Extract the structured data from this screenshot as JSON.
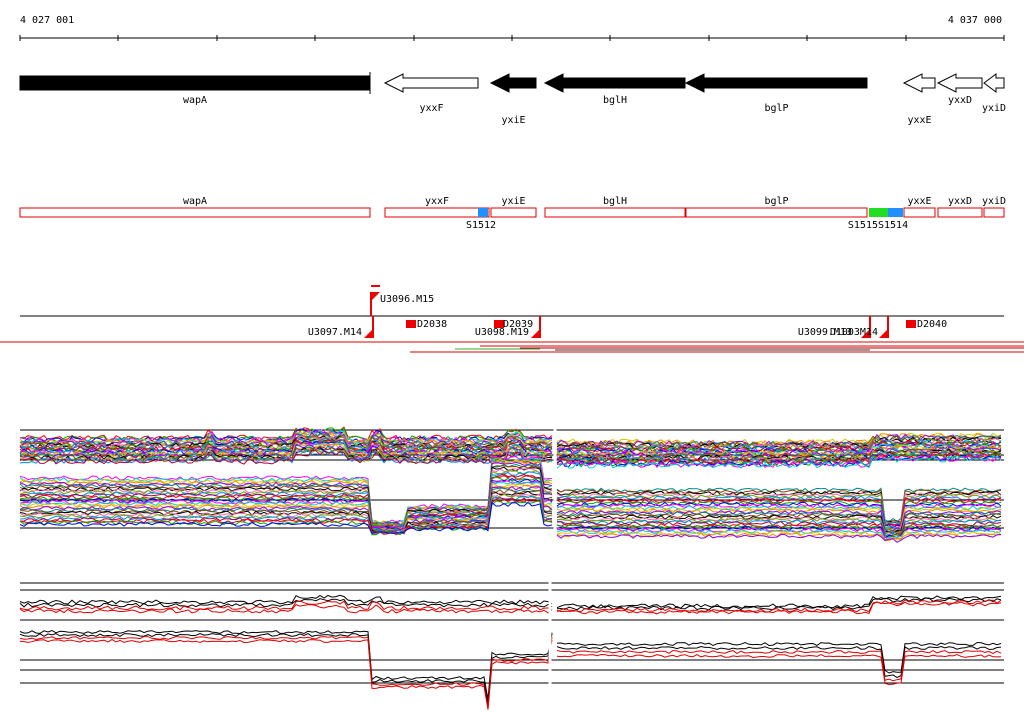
{
  "coordinates": {
    "start": "4 027 001",
    "end": "4 037 000"
  },
  "genes": [
    {
      "name": "wapA",
      "strand": "+",
      "style": "filled"
    },
    {
      "name": "yxxF",
      "strand": "-",
      "style": "open"
    },
    {
      "name": "yxiE",
      "strand": "-",
      "style": "filled"
    },
    {
      "name": "bglH",
      "strand": "-",
      "style": "filled"
    },
    {
      "name": "bglP",
      "strand": "-",
      "style": "filled"
    },
    {
      "name": "yxxE",
      "strand": "-",
      "style": "open"
    },
    {
      "name": "yxxD",
      "strand": "-",
      "style": "open"
    },
    {
      "name": "yxiD",
      "strand": "-",
      "style": "open"
    }
  ],
  "transcription_units": [
    {
      "label": "wapA"
    },
    {
      "label": "yxxF"
    },
    {
      "label": "yxiE"
    },
    {
      "label": "bglH"
    },
    {
      "label": "bglP"
    },
    {
      "label": "yxxE"
    },
    {
      "label": "yxxD"
    },
    {
      "label": "yxiD"
    }
  ],
  "sigma_sites": [
    {
      "label": "S1512",
      "color": "#1e90ff"
    },
    {
      "label": "S1515",
      "color": "#22dd22"
    },
    {
      "label": "S1514",
      "color": "#1e90ff"
    }
  ],
  "upshifts": [
    {
      "label": "U3096.M15",
      "strand": "+"
    },
    {
      "label": "U3097.M14",
      "strand": "-"
    },
    {
      "label": "U3098.M19",
      "strand": "-"
    },
    {
      "label": "U3099.M13",
      "strand": "-"
    },
    {
      "label": "D1003M14",
      "strand": "-"
    }
  ],
  "downshifts": [
    {
      "label": "D2038"
    },
    {
      "label": "D2039"
    },
    {
      "label": "D2040"
    }
  ],
  "colors": {
    "gene_fill": "#000000",
    "tu_outline": "#dd0000",
    "marker": "#ee0000",
    "read_line": "#dd0000",
    "read_green": "#33aa33",
    "strand_line": "#000000"
  },
  "expression_panels": [
    {
      "name": "multi-condition-plus",
      "style": "rainbow"
    },
    {
      "name": "multi-condition-minus",
      "style": "rainbow"
    },
    {
      "name": "selected-plus",
      "style": "black-red"
    },
    {
      "name": "selected-minus",
      "style": "black-red"
    }
  ]
}
